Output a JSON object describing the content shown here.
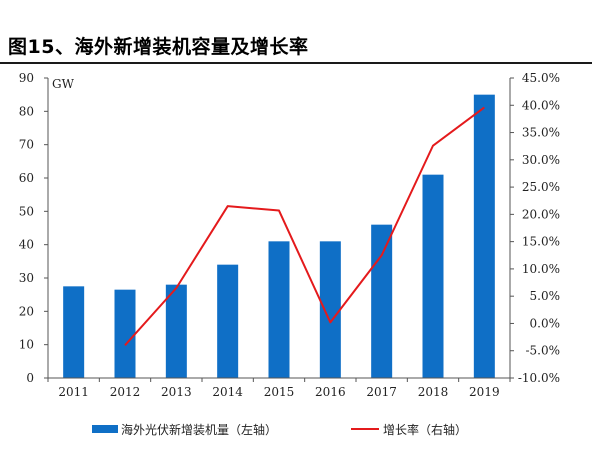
{
  "title": "图15、海外新增装机容量及增长率",
  "chart_data": {
    "type": "bar",
    "categories": [
      "2011",
      "2012",
      "2013",
      "2014",
      "2015",
      "2016",
      "2017",
      "2018",
      "2019"
    ],
    "series": [
      {
        "name": "海外光伏新增装机量（左轴）",
        "type": "bar",
        "axis": "left",
        "values": [
          27.5,
          26.5,
          28,
          34,
          41,
          41,
          46,
          61,
          85
        ]
      },
      {
        "name": "增长率（右轴）",
        "type": "line",
        "axis": "right",
        "values": [
          null,
          -4.0,
          6.5,
          21.5,
          20.7,
          0.2,
          12.5,
          32.6,
          39.6
        ]
      }
    ],
    "ylabel": "GW",
    "ylim": [
      0,
      90
    ],
    "yticks": [
      "0",
      "10",
      "20",
      "30",
      "40",
      "50",
      "60",
      "70",
      "80",
      "90"
    ],
    "y2lim": [
      -10,
      45
    ],
    "y2ticks": [
      "-10.0%",
      "-5.0%",
      "0.0%",
      "5.0%",
      "10.0%",
      "15.0%",
      "20.0%",
      "25.0%",
      "30.0%",
      "35.0%",
      "40.0%",
      "45.0%"
    ],
    "grid": false,
    "legend": "bottom",
    "colors": {
      "bar": "#0f6fc6",
      "line": "#e41a1c"
    }
  }
}
